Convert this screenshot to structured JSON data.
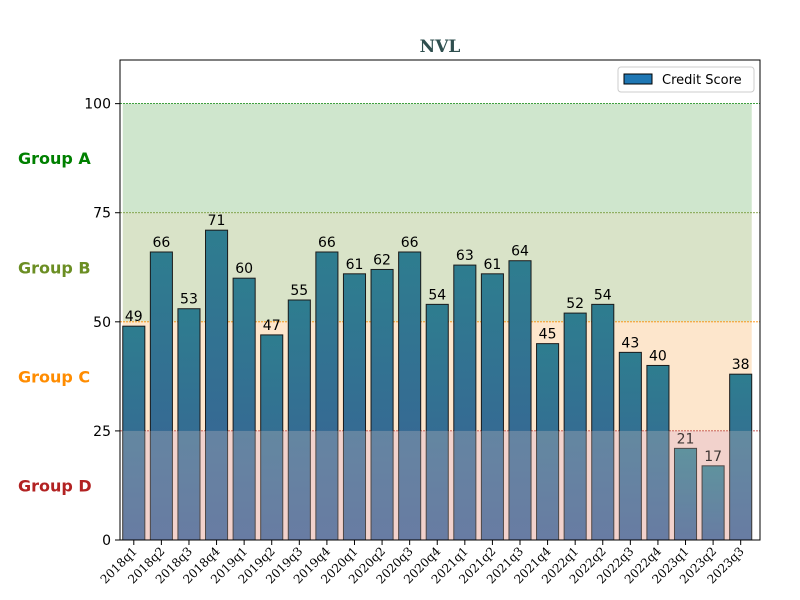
{
  "chart_data": {
    "type": "bar",
    "title": "NVL",
    "categories": [
      "2018q1",
      "2018q2",
      "2018q3",
      "2018q4",
      "2019q1",
      "2019q2",
      "2019q3",
      "2019q4",
      "2020q1",
      "2020q2",
      "2020q3",
      "2020q4",
      "2021q1",
      "2021q2",
      "2021q3",
      "2021q4",
      "2022q1",
      "2022q2",
      "2022q3",
      "2022q4",
      "2023q1",
      "2023q2",
      "2023q3"
    ],
    "series": [
      {
        "name": "Credit Score",
        "values": [
          49,
          66,
          53,
          71,
          60,
          47,
          55,
          66,
          61,
          62,
          66,
          54,
          63,
          61,
          64,
          45,
          52,
          54,
          43,
          40,
          21,
          17,
          38
        ]
      }
    ],
    "ylim": [
      0,
      110
    ],
    "yticks": [
      "0",
      "25",
      "50",
      "75",
      "100"
    ],
    "legend_position": "top-right",
    "grid": false,
    "bands": [
      {
        "label": "Group A",
        "from": 75,
        "to": 100,
        "color": "#008000",
        "fill": "#cfe6cd"
      },
      {
        "label": "Group B",
        "from": 50,
        "to": 75,
        "color": "#6b8e23",
        "fill": "#d9e3c8"
      },
      {
        "label": "Group C",
        "from": 25,
        "to": 50,
        "color": "#ff8c00",
        "fill": "#fde6cc"
      },
      {
        "label": "Group D",
        "from": 0,
        "to": 25,
        "color": "#b22222",
        "fill": "#f2d2cc"
      }
    ],
    "colors": {
      "bar_top": "#2e7d8f",
      "bar_bottom": "#3a5f96",
      "bar_edge": "#1a1a1a",
      "legend_swatch": "#1f77b4"
    }
  }
}
